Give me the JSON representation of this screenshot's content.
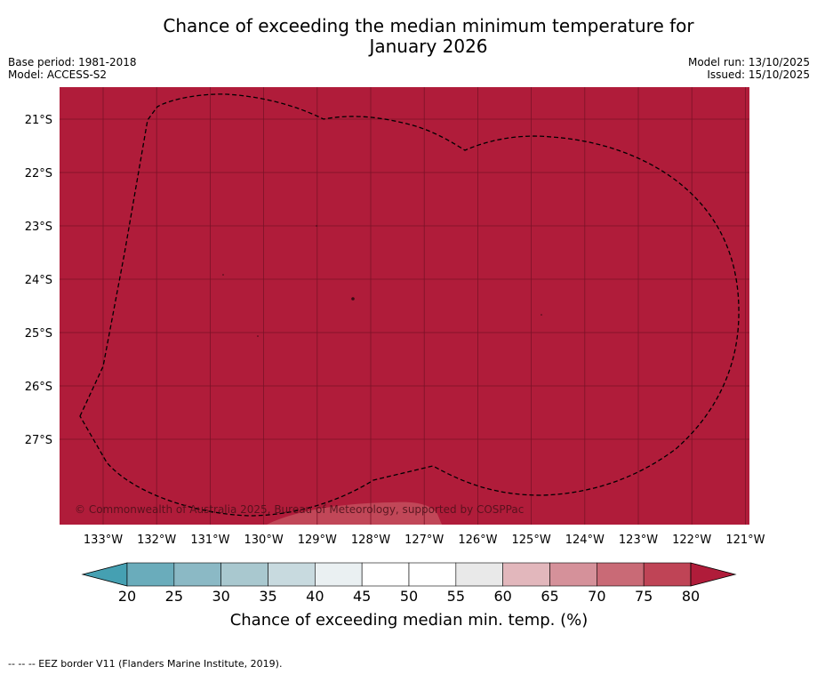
{
  "header": {
    "title_line1": "Chance of exceeding the median minimum temperature for",
    "title_line2": "January 2026",
    "base_period": "Base period: 1981-2018",
    "model": "Model: ACCESS-S2",
    "model_run": "Model run: 13/10/2025",
    "issued": "Issued: 15/10/2025"
  },
  "map": {
    "fill_color": "#b01c3a",
    "lat_labels": [
      "21°S",
      "22°S",
      "23°S",
      "24°S",
      "25°S",
      "26°S",
      "27°S"
    ],
    "lon_labels": [
      "133°W",
      "132°W",
      "131°W",
      "130°W",
      "129°W",
      "128°W",
      "127°W",
      "126°W",
      "125°W",
      "124°W",
      "123°W",
      "122°W",
      "121°W"
    ],
    "copyright": "© Commonwealth of Australia 2025, Bureau of Meteorology, supported by COSPPac"
  },
  "colorbar": {
    "label": "Chance of exceeding median min. temp. (%)",
    "ticks": [
      "20",
      "25",
      "30",
      "35",
      "40",
      "45",
      "50",
      "55",
      "60",
      "65",
      "70",
      "75",
      "80"
    ],
    "colors": [
      "#6aacbb",
      "#8bb9c5",
      "#a9c8cf",
      "#c8dadf",
      "#eaf0f2",
      "#ffffff",
      "#ffffff",
      "#e9e9e9",
      "#e2b7bc",
      "#d5919a",
      "#c96a76",
      "#bf4456"
    ],
    "under_color": "#45a0b2",
    "over_color": "#b01c3a"
  },
  "footer": {
    "legend_text": "--  --  -- EEZ border V11 (Flanders Marine Institute, 2019)."
  }
}
